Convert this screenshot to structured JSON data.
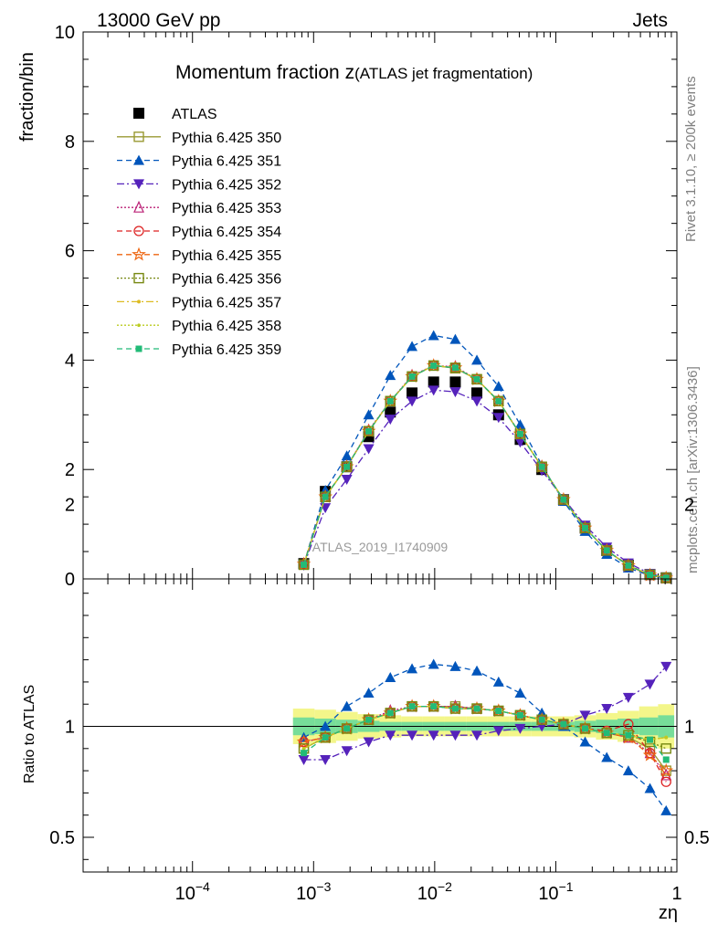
{
  "header": {
    "energy_label": "13000 GeV pp",
    "category_label": "Jets",
    "rivet_label": "Rivet 3.1.10, ≥ 200k events",
    "source_label": "mcplots.cern.ch [arXiv:1306.3436]"
  },
  "chart_data": [
    {
      "type": "line",
      "panel": "main",
      "title_main": "Momentum fraction ",
      "title_z": "z",
      "title_sub": "(ATLAS jet fragmentation)",
      "ylabel": "fraction/bin",
      "watermark": "ATLAS_2019_I1740909",
      "xscale": "log",
      "xlim": [
        1.25e-05,
        1.0
      ],
      "ylim": [
        0,
        10
      ],
      "yticks": [
        0,
        2,
        4,
        6,
        8,
        10
      ],
      "ytick_labels": [
        "0",
        "2",
        "4",
        "6",
        "8",
        "10"
      ],
      "x": [
        0.00083,
        0.00125,
        0.00188,
        0.00285,
        0.0043,
        0.0065,
        0.0098,
        0.0148,
        0.0223,
        0.0337,
        0.0508,
        0.0767,
        0.1158,
        0.1746,
        0.2634,
        0.3974,
        0.5995,
        0.815
      ],
      "series": [
        {
          "name": "ATLAS",
          "color": "#000000",
          "marker": "square-filled",
          "dash": "none",
          "values": [
            0.28,
            1.6,
            2.05,
            2.6,
            3.05,
            3.4,
            3.6,
            3.6,
            3.4,
            3.0,
            2.55,
            2.0,
            1.45,
            0.93,
            0.52,
            0.25,
            0.08,
            0.02
          ]
        },
        {
          "name": "Pythia 6.425 350",
          "color": "#999933",
          "marker": "square-open",
          "dash": "solid",
          "values": [
            0.26,
            1.5,
            2.05,
            2.7,
            3.25,
            3.7,
            3.9,
            3.85,
            3.65,
            3.25,
            2.65,
            2.05,
            1.45,
            0.93,
            0.52,
            0.24,
            0.07,
            0.018
          ]
        },
        {
          "name": "Pythia 6.425 351",
          "color": "#0055bb",
          "marker": "triangle-up-filled",
          "dash": "6,4",
          "values": [
            0.26,
            1.62,
            2.25,
            3.0,
            3.72,
            4.25,
            4.45,
            4.38,
            4.0,
            3.52,
            2.82,
            2.08,
            1.42,
            0.87,
            0.45,
            0.2,
            0.06,
            0.015
          ]
        },
        {
          "name": "Pythia 6.425 352",
          "color": "#5522bb",
          "marker": "triangle-down-filled",
          "dash": "8,3,2,3",
          "values": [
            0.25,
            1.3,
            1.82,
            2.38,
            2.92,
            3.25,
            3.45,
            3.42,
            3.25,
            2.95,
            2.5,
            1.98,
            1.47,
            0.98,
            0.58,
            0.29,
            0.095,
            0.028
          ]
        },
        {
          "name": "Pythia 6.425 353",
          "color": "#bb2277",
          "marker": "triangle-up-open",
          "dash": "2,2",
          "values": [
            0.27,
            1.5,
            2.05,
            2.72,
            3.25,
            3.72,
            3.9,
            3.88,
            3.65,
            3.25,
            2.65,
            2.05,
            1.45,
            0.93,
            0.52,
            0.24,
            0.068,
            0.016
          ]
        },
        {
          "name": "Pythia 6.425 354",
          "color": "#dd2222",
          "marker": "circle-open",
          "dash": "6,4",
          "values": [
            0.27,
            1.5,
            2.05,
            2.7,
            3.25,
            3.7,
            3.9,
            3.86,
            3.65,
            3.25,
            2.65,
            2.05,
            1.45,
            0.93,
            0.52,
            0.255,
            0.07,
            0.015
          ]
        },
        {
          "name": "Pythia 6.425 355",
          "color": "#ee6611",
          "marker": "star-open",
          "dash": "6,4",
          "values": [
            0.27,
            1.5,
            2.05,
            2.7,
            3.25,
            3.7,
            3.9,
            3.86,
            3.65,
            3.25,
            2.65,
            2.05,
            1.45,
            0.93,
            0.52,
            0.24,
            0.068,
            0.016
          ]
        },
        {
          "name": "Pythia 6.425 356",
          "color": "#778811",
          "marker": "square-open",
          "dash": "2,2",
          "values": [
            0.26,
            1.5,
            2.05,
            2.7,
            3.25,
            3.7,
            3.9,
            3.86,
            3.65,
            3.25,
            2.65,
            2.05,
            1.45,
            0.93,
            0.52,
            0.245,
            0.075,
            0.018
          ]
        },
        {
          "name": "Pythia 6.425 357",
          "color": "#ddbb22",
          "marker": "dash-dot",
          "dash": "8,3,2,3",
          "values": [
            0.26,
            1.5,
            2.05,
            2.7,
            3.25,
            3.7,
            3.9,
            3.86,
            3.65,
            3.25,
            2.65,
            2.05,
            1.45,
            0.93,
            0.52,
            0.245,
            0.075,
            0.019
          ]
        },
        {
          "name": "Pythia 6.425 358",
          "color": "#bbcc22",
          "marker": "dot",
          "dash": "2,2",
          "values": [
            0.26,
            1.5,
            2.05,
            2.7,
            3.25,
            3.7,
            3.9,
            3.86,
            3.65,
            3.25,
            2.65,
            2.05,
            1.45,
            0.93,
            0.52,
            0.245,
            0.075,
            0.019
          ]
        },
        {
          "name": "Pythia 6.425 359",
          "color": "#22bb77",
          "marker": "square-small-filled",
          "dash": "6,4",
          "values": [
            0.26,
            1.5,
            2.05,
            2.7,
            3.25,
            3.7,
            3.9,
            3.86,
            3.65,
            3.25,
            2.65,
            2.05,
            1.45,
            0.93,
            0.52,
            0.245,
            0.075,
            0.019
          ]
        }
      ]
    },
    {
      "type": "line",
      "panel": "ratio",
      "ylabel": "Ratio to ATLAS",
      "xlabel": "zη",
      "xscale": "log",
      "xlim": [
        1.25e-05,
        1.0
      ],
      "ylim": [
        0.35,
        2.3
      ],
      "yticks": [
        0.5,
        1,
        2
      ],
      "ytick_labels": [
        "0.5",
        "1",
        "2"
      ],
      "xticks": [
        0.0001,
        0.001,
        0.01,
        0.1,
        1
      ],
      "xtick_labels": [
        {
          "base": "10",
          "exp": "−4"
        },
        {
          "base": "10",
          "exp": "−3"
        },
        {
          "base": "10",
          "exp": "−2"
        },
        {
          "base": "10",
          "exp": "−1"
        },
        {
          "base": "1",
          "exp": ""
        }
      ],
      "reference_line": 1.0,
      "band_inner": {
        "color": "#77dd99",
        "half_width": [
          0.04,
          0.035,
          0.03,
          0.025,
          0.02,
          0.02,
          0.02,
          0.02,
          0.02,
          0.02,
          0.02,
          0.02,
          0.02,
          0.025,
          0.03,
          0.035,
          0.04,
          0.05
        ]
      },
      "band_outer": {
        "color": "#f3f68a",
        "half_width": [
          0.08,
          0.075,
          0.065,
          0.055,
          0.05,
          0.045,
          0.045,
          0.045,
          0.045,
          0.045,
          0.045,
          0.045,
          0.045,
          0.05,
          0.06,
          0.07,
          0.09,
          0.1
        ]
      },
      "x": [
        0.00083,
        0.00125,
        0.00188,
        0.00285,
        0.0043,
        0.0065,
        0.0098,
        0.0148,
        0.0223,
        0.0337,
        0.0508,
        0.0767,
        0.1158,
        0.1746,
        0.2634,
        0.3974,
        0.5995,
        0.815
      ],
      "series": [
        {
          "name": "Pythia 6.425 350",
          "color": "#999933",
          "marker": "square-open",
          "dash": "solid",
          "values": [
            0.9,
            0.95,
            0.99,
            1.03,
            1.06,
            1.09,
            1.09,
            1.09,
            1.08,
            1.07,
            1.05,
            1.03,
            1.01,
            0.99,
            0.97,
            0.95,
            0.9,
            0.8
          ]
        },
        {
          "name": "Pythia 6.425 351",
          "color": "#0055bb",
          "marker": "triangle-up-filled",
          "dash": "6,4",
          "values": [
            0.95,
            1.0,
            1.09,
            1.15,
            1.22,
            1.26,
            1.28,
            1.27,
            1.25,
            1.2,
            1.15,
            1.06,
            1.0,
            0.93,
            0.86,
            0.8,
            0.72,
            0.62
          ]
        },
        {
          "name": "Pythia 6.425 352",
          "color": "#5522bb",
          "marker": "triangle-down-filled",
          "dash": "8,3,2,3",
          "values": [
            0.85,
            0.85,
            0.89,
            0.93,
            0.96,
            0.96,
            0.96,
            0.96,
            0.96,
            0.98,
            0.99,
            1.0,
            1.01,
            1.05,
            1.08,
            1.13,
            1.19,
            1.27
          ]
        },
        {
          "name": "Pythia 6.425 353",
          "color": "#bb2277",
          "marker": "triangle-up-open",
          "dash": "2,2",
          "values": [
            0.93,
            0.95,
            0.99,
            1.03,
            1.07,
            1.09,
            1.09,
            1.09,
            1.08,
            1.07,
            1.05,
            1.03,
            1.01,
            0.99,
            0.97,
            0.95,
            0.88,
            0.78
          ]
        },
        {
          "name": "Pythia 6.425 354",
          "color": "#dd2222",
          "marker": "circle-open",
          "dash": "6,4",
          "values": [
            0.93,
            0.95,
            0.99,
            1.03,
            1.06,
            1.09,
            1.09,
            1.08,
            1.08,
            1.07,
            1.05,
            1.03,
            1.01,
            0.99,
            0.98,
            1.01,
            0.88,
            0.75
          ]
        },
        {
          "name": "Pythia 6.425 355",
          "color": "#ee6611",
          "marker": "star-open",
          "dash": "6,4",
          "values": [
            0.93,
            0.95,
            0.99,
            1.03,
            1.06,
            1.09,
            1.09,
            1.08,
            1.08,
            1.07,
            1.05,
            1.03,
            1.01,
            0.99,
            0.97,
            0.95,
            0.87,
            0.8
          ]
        },
        {
          "name": "Pythia 6.425 356",
          "color": "#778811",
          "marker": "square-open",
          "dash": "2,2",
          "values": [
            0.9,
            0.95,
            0.99,
            1.03,
            1.06,
            1.09,
            1.09,
            1.08,
            1.08,
            1.07,
            1.05,
            1.03,
            1.01,
            0.99,
            0.97,
            0.96,
            0.93,
            0.9
          ]
        },
        {
          "name": "Pythia 6.425 357",
          "color": "#ddbb22",
          "marker": "dash-dot",
          "dash": "8,3,2,3",
          "values": [
            0.9,
            0.95,
            0.99,
            1.03,
            1.06,
            1.09,
            1.09,
            1.08,
            1.08,
            1.07,
            1.05,
            1.03,
            1.01,
            0.99,
            0.97,
            0.96,
            0.94,
            0.95
          ]
        },
        {
          "name": "Pythia 6.425 358",
          "color": "#bbcc22",
          "marker": "dot",
          "dash": "2,2",
          "values": [
            0.9,
            0.95,
            0.99,
            1.03,
            1.06,
            1.09,
            1.09,
            1.08,
            1.08,
            1.07,
            1.05,
            1.03,
            1.01,
            0.99,
            0.97,
            0.96,
            0.94,
            0.95
          ]
        },
        {
          "name": "Pythia 6.425 359",
          "color": "#22bb77",
          "marker": "square-small-filled",
          "dash": "6,4",
          "values": [
            0.88,
            0.95,
            0.99,
            1.03,
            1.06,
            1.09,
            1.09,
            1.08,
            1.08,
            1.07,
            1.05,
            1.03,
            1.01,
            0.99,
            0.97,
            0.96,
            0.94,
            0.85
          ]
        }
      ]
    }
  ]
}
